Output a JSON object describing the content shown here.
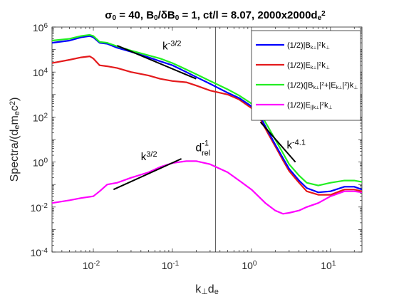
{
  "chart_data": {
    "type": "line",
    "title_parts": [
      {
        "t": "σ",
        "s": "normal"
      },
      {
        "t": "0",
        "s": "sub"
      },
      {
        "t": " = 40, B",
        "s": "normal"
      },
      {
        "t": "0",
        "s": "sub"
      },
      {
        "t": "/δB",
        "s": "normal"
      },
      {
        "t": "0",
        "s": "sub"
      },
      {
        "t": " = 1, ct/l = 8.07, 2000x2000d",
        "s": "normal"
      },
      {
        "t": "e",
        "s": "sub"
      },
      {
        "t": "2",
        "s": "sup"
      }
    ],
    "xlabel_parts": [
      {
        "t": "k",
        "s": "normal"
      },
      {
        "t": "⊥",
        "s": "sub"
      },
      {
        "t": "d",
        "s": "normal"
      },
      {
        "t": "e",
        "s": "sub"
      }
    ],
    "ylabel_parts": [
      {
        "t": "Spectra/(d",
        "s": "normal"
      },
      {
        "t": "e",
        "s": "sub"
      },
      {
        "t": "m",
        "s": "normal"
      },
      {
        "t": "e",
        "s": "sub"
      },
      {
        "t": "c",
        "s": "normal"
      },
      {
        "t": "2",
        "s": "sup"
      },
      {
        "t": ")",
        "s": "normal"
      }
    ],
    "x_scale": "log",
    "y_scale": "log",
    "xlim": [
      0.003,
      25
    ],
    "ylim": [
      0.0001,
      1000000
    ],
    "x_ticks": [
      {
        "value": 0.01,
        "base": "10",
        "exp": "-2"
      },
      {
        "value": 0.1,
        "base": "10",
        "exp": "-1"
      },
      {
        "value": 1,
        "base": "10",
        "exp": "0"
      },
      {
        "value": 10,
        "base": "10",
        "exp": "1"
      }
    ],
    "y_ticks": [
      {
        "value": 0.0001,
        "base": "10",
        "exp": "-4"
      },
      {
        "value": 0.01,
        "base": "10",
        "exp": "-2"
      },
      {
        "value": 1,
        "base": "10",
        "exp": "0"
      },
      {
        "value": 100,
        "base": "10",
        "exp": "2"
      },
      {
        "value": 10000,
        "base": "10",
        "exp": "4"
      },
      {
        "value": 1000000,
        "base": "10",
        "exp": "6"
      }
    ],
    "grid": false,
    "legend_position": "top-right",
    "series": [
      {
        "name_parts": [
          {
            "t": "(1/2)|B",
            "s": "normal"
          },
          {
            "t": "k",
            "s": "sub"
          },
          {
            "t": "⊥",
            "s": "subsub"
          },
          {
            "t": "|",
            "s": "normal"
          },
          {
            "t": "2",
            "s": "sup"
          },
          {
            "t": "k",
            "s": "normal"
          },
          {
            "t": "⊥",
            "s": "sub"
          }
        ],
        "color": "#0000ff",
        "x": [
          0.003,
          0.005,
          0.007,
          0.009,
          0.01,
          0.012,
          0.015,
          0.02,
          0.03,
          0.05,
          0.07,
          0.1,
          0.15,
          0.2,
          0.3,
          0.5,
          0.7,
          1,
          1.3,
          1.6,
          2,
          2.5,
          3,
          4,
          5,
          7,
          10,
          15,
          20,
          25
        ],
        "y": [
          200000,
          250000,
          350000,
          400000,
          350000,
          200000,
          180000,
          120000,
          80000,
          45000,
          30000,
          20000,
          10000,
          6000,
          3000,
          1200,
          700,
          300,
          100,
          25,
          6,
          1.5,
          0.5,
          0.15,
          0.07,
          0.045,
          0.05,
          0.08,
          0.08,
          0.06
        ]
      },
      {
        "name_parts": [
          {
            "t": "(1/2)|E",
            "s": "normal"
          },
          {
            "t": "k",
            "s": "sub"
          },
          {
            "t": "⊥",
            "s": "subsub"
          },
          {
            "t": "|",
            "s": "normal"
          },
          {
            "t": "2",
            "s": "sup"
          },
          {
            "t": "k",
            "s": "normal"
          },
          {
            "t": "⊥",
            "s": "sub"
          }
        ],
        "color": "#e41a1c",
        "x": [
          0.003,
          0.005,
          0.007,
          0.009,
          0.01,
          0.012,
          0.015,
          0.02,
          0.03,
          0.05,
          0.07,
          0.1,
          0.15,
          0.2,
          0.3,
          0.5,
          0.7,
          1,
          1.3,
          1.6,
          2,
          2.5,
          3,
          4,
          5,
          7,
          10,
          15,
          20,
          25
        ],
        "y": [
          25000,
          35000,
          45000,
          50000,
          40000,
          20000,
          18000,
          15000,
          10000,
          7000,
          5000,
          4000,
          3500,
          2500,
          1500,
          1000,
          600,
          250,
          80,
          20,
          5,
          1.2,
          0.4,
          0.12,
          0.05,
          0.035,
          0.035,
          0.06,
          0.06,
          0.05
        ]
      },
      {
        "name_parts": [
          {
            "t": "(1/2)(|B",
            "s": "normal"
          },
          {
            "t": "k",
            "s": "sub"
          },
          {
            "t": "⊥",
            "s": "subsub"
          },
          {
            "t": "|",
            "s": "normal"
          },
          {
            "t": "2",
            "s": "sup"
          },
          {
            "t": "+|E",
            "s": "normal"
          },
          {
            "t": "k",
            "s": "sub"
          },
          {
            "t": "⊥",
            "s": "subsub"
          },
          {
            "t": "|",
            "s": "normal"
          },
          {
            "t": "2",
            "s": "sup"
          },
          {
            "t": ")k",
            "s": "normal"
          },
          {
            "t": "⊥",
            "s": "sub"
          }
        ],
        "color": "#22ee22",
        "x": [
          0.003,
          0.005,
          0.007,
          0.009,
          0.01,
          0.012,
          0.015,
          0.02,
          0.03,
          0.05,
          0.07,
          0.1,
          0.15,
          0.2,
          0.3,
          0.5,
          0.7,
          1,
          1.3,
          1.6,
          2,
          2.5,
          3,
          4,
          5,
          7,
          10,
          15,
          20,
          25
        ],
        "y": [
          250000,
          300000,
          400000,
          450000,
          400000,
          220000,
          200000,
          140000,
          90000,
          55000,
          40000,
          25000,
          13000,
          8000,
          4000,
          1700,
          900,
          400,
          140,
          40,
          10,
          2.5,
          0.8,
          0.25,
          0.12,
          0.09,
          0.12,
          0.15,
          0.15,
          0.13
        ]
      },
      {
        "name_parts": [
          {
            "t": "(1/2)|E",
            "s": "normal"
          },
          {
            "t": "||k",
            "s": "sub"
          },
          {
            "t": "⊥",
            "s": "subsub"
          },
          {
            "t": "|",
            "s": "normal"
          },
          {
            "t": "2",
            "s": "sup"
          },
          {
            "t": "k",
            "s": "normal"
          },
          {
            "t": "⊥",
            "s": "sub"
          }
        ],
        "color": "#ff00ff",
        "x": [
          0.003,
          0.005,
          0.007,
          0.01,
          0.012,
          0.015,
          0.02,
          0.03,
          0.05,
          0.07,
          0.1,
          0.15,
          0.2,
          0.3,
          0.5,
          0.7,
          1,
          1.5,
          2,
          2.5,
          3,
          4,
          5,
          7,
          10,
          15,
          20,
          25
        ],
        "y": [
          0.015,
          0.02,
          0.025,
          0.03,
          0.05,
          0.1,
          0.12,
          0.2,
          0.35,
          0.6,
          0.9,
          1.1,
          1.1,
          0.8,
          0.35,
          0.15,
          0.06,
          0.015,
          0.007,
          0.005,
          0.0055,
          0.007,
          0.01,
          0.015,
          0.03,
          0.05,
          0.05,
          0.045
        ]
      }
    ],
    "fit_lines": [
      {
        "label_base": "k",
        "label_exp": "-3/2",
        "x": [
          0.02,
          0.2
        ],
        "y": [
          150000,
          5000
        ],
        "label_pos": [
          0.075,
          100000
        ]
      },
      {
        "label_base": "k",
        "label_exp": "3/2",
        "x": [
          0.018,
          0.13
        ],
        "y": [
          0.06,
          1.4
        ],
        "label_pos": [
          0.04,
          1.2
        ]
      },
      {
        "label_base": "k",
        "label_exp": "-4.1",
        "x": [
          1.3,
          3.6
        ],
        "y": [
          60,
          1
        ],
        "label_pos": [
          2.8,
          4
        ]
      }
    ],
    "vertical_line": {
      "x": 0.35,
      "label_base": "d",
      "label_sub": "rel",
      "label_sup": "-1",
      "label_y": 3
    }
  }
}
